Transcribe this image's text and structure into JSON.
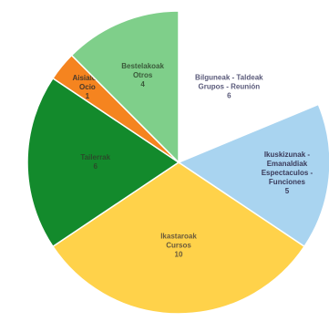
{
  "chart_data": {
    "type": "pie",
    "categories": [
      [
        "Bilguneak - Taldeak",
        "Grupos - Reunión"
      ],
      [
        "Ikuskizunak -",
        "Emanaldiak",
        "Espectaculos -",
        "Funciones"
      ],
      [
        "Ikastaroak",
        "Cursos"
      ],
      [
        "Tailerrak"
      ],
      [
        "Aisialdia",
        "Ocio"
      ],
      [
        "Bestelakoak",
        "Otros"
      ]
    ],
    "values": [
      6,
      5,
      10,
      6,
      1,
      4
    ],
    "colors": [
      "#ffffff",
      "#a9d4f0",
      "#ffd24a",
      "#138a2c",
      "#f5841f",
      "#7fcf8a"
    ],
    "label_colors": [
      "#5a5a7a",
      "#3a3a5a",
      "#6a5a3a",
      "#2a4a2a",
      "#4a3a2a",
      "#3a5a3a"
    ]
  }
}
